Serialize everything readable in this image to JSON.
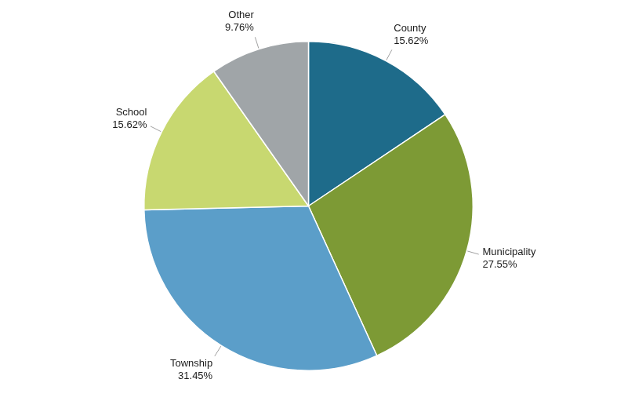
{
  "chart_data": {
    "type": "pie",
    "categories": [
      "County",
      "Municipality",
      "Township",
      "School",
      "Other"
    ],
    "values": [
      15.62,
      27.55,
      31.45,
      15.62,
      9.76
    ],
    "value_labels": [
      "15.62%",
      "27.55%",
      "31.45%",
      "15.62%",
      "9.76%"
    ],
    "colors": [
      "#1e6b8a",
      "#7d9a35",
      "#5b9ec9",
      "#c8d870",
      "#a0a5a8"
    ],
    "data_labels": true
  }
}
